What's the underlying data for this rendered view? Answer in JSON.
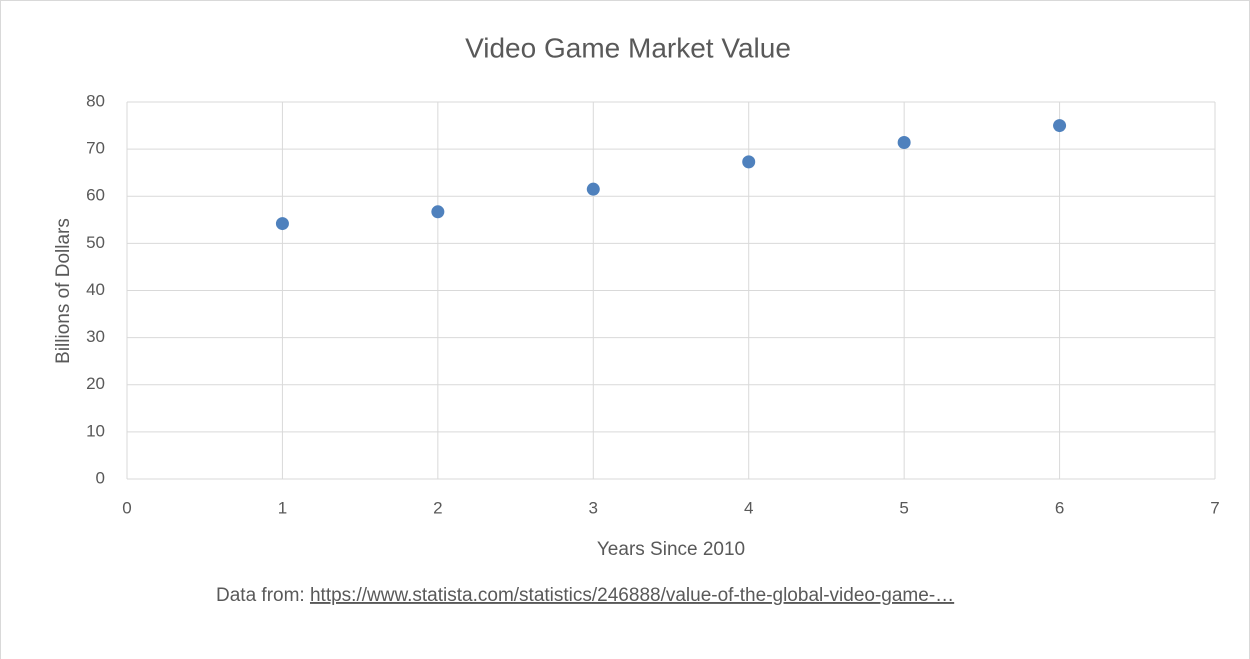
{
  "chart_data": {
    "type": "scatter",
    "title": "Video Game Market Value",
    "x_label": "Years Since 2010",
    "y_label": "Billions of Dollars",
    "source_label": "Data from:",
    "source_url": "https://www.statista.com/statistics/246888/value-of-the-global-video-game-…",
    "x": [
      1,
      2,
      3,
      4,
      5,
      6
    ],
    "values": [
      54.2,
      56.7,
      61.5,
      67.3,
      71.4,
      75
    ],
    "color": "#4f81bd",
    "xlim": [
      0,
      7
    ],
    "xticks": [
      0,
      1,
      2,
      3,
      4,
      5,
      6,
      7
    ],
    "ylim": [
      0,
      80
    ],
    "yticks": [
      0,
      10,
      20,
      30,
      40,
      50,
      60,
      70,
      80
    ],
    "grid": true
  }
}
